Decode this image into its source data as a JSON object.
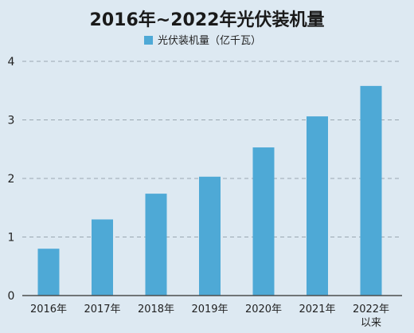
{
  "chart_data": {
    "type": "bar",
    "title": "2016年~2022年光伏装机量",
    "legend": {
      "label": "光伏装机量（亿千瓦）",
      "placement": "top-center"
    },
    "categories": [
      [
        "2016年"
      ],
      [
        "2017年"
      ],
      [
        "2018年"
      ],
      [
        "2019年"
      ],
      [
        "2020年"
      ],
      [
        "2021年"
      ],
      [
        "2022年",
        "以来"
      ]
    ],
    "series": [
      {
        "name": "光伏装机量（亿千瓦）",
        "values": [
          0.8,
          1.3,
          1.74,
          2.03,
          2.53,
          3.06,
          3.58
        ]
      }
    ],
    "yticks": [
      "0",
      "1",
      "2",
      "3",
      "4"
    ],
    "ylim": [
      0,
      4
    ],
    "grid": true,
    "colors": {
      "bar": "#4ea9d6",
      "background": "#dde9f2",
      "grid": "#9aa7b1",
      "axis": "#4d4d4d"
    }
  }
}
